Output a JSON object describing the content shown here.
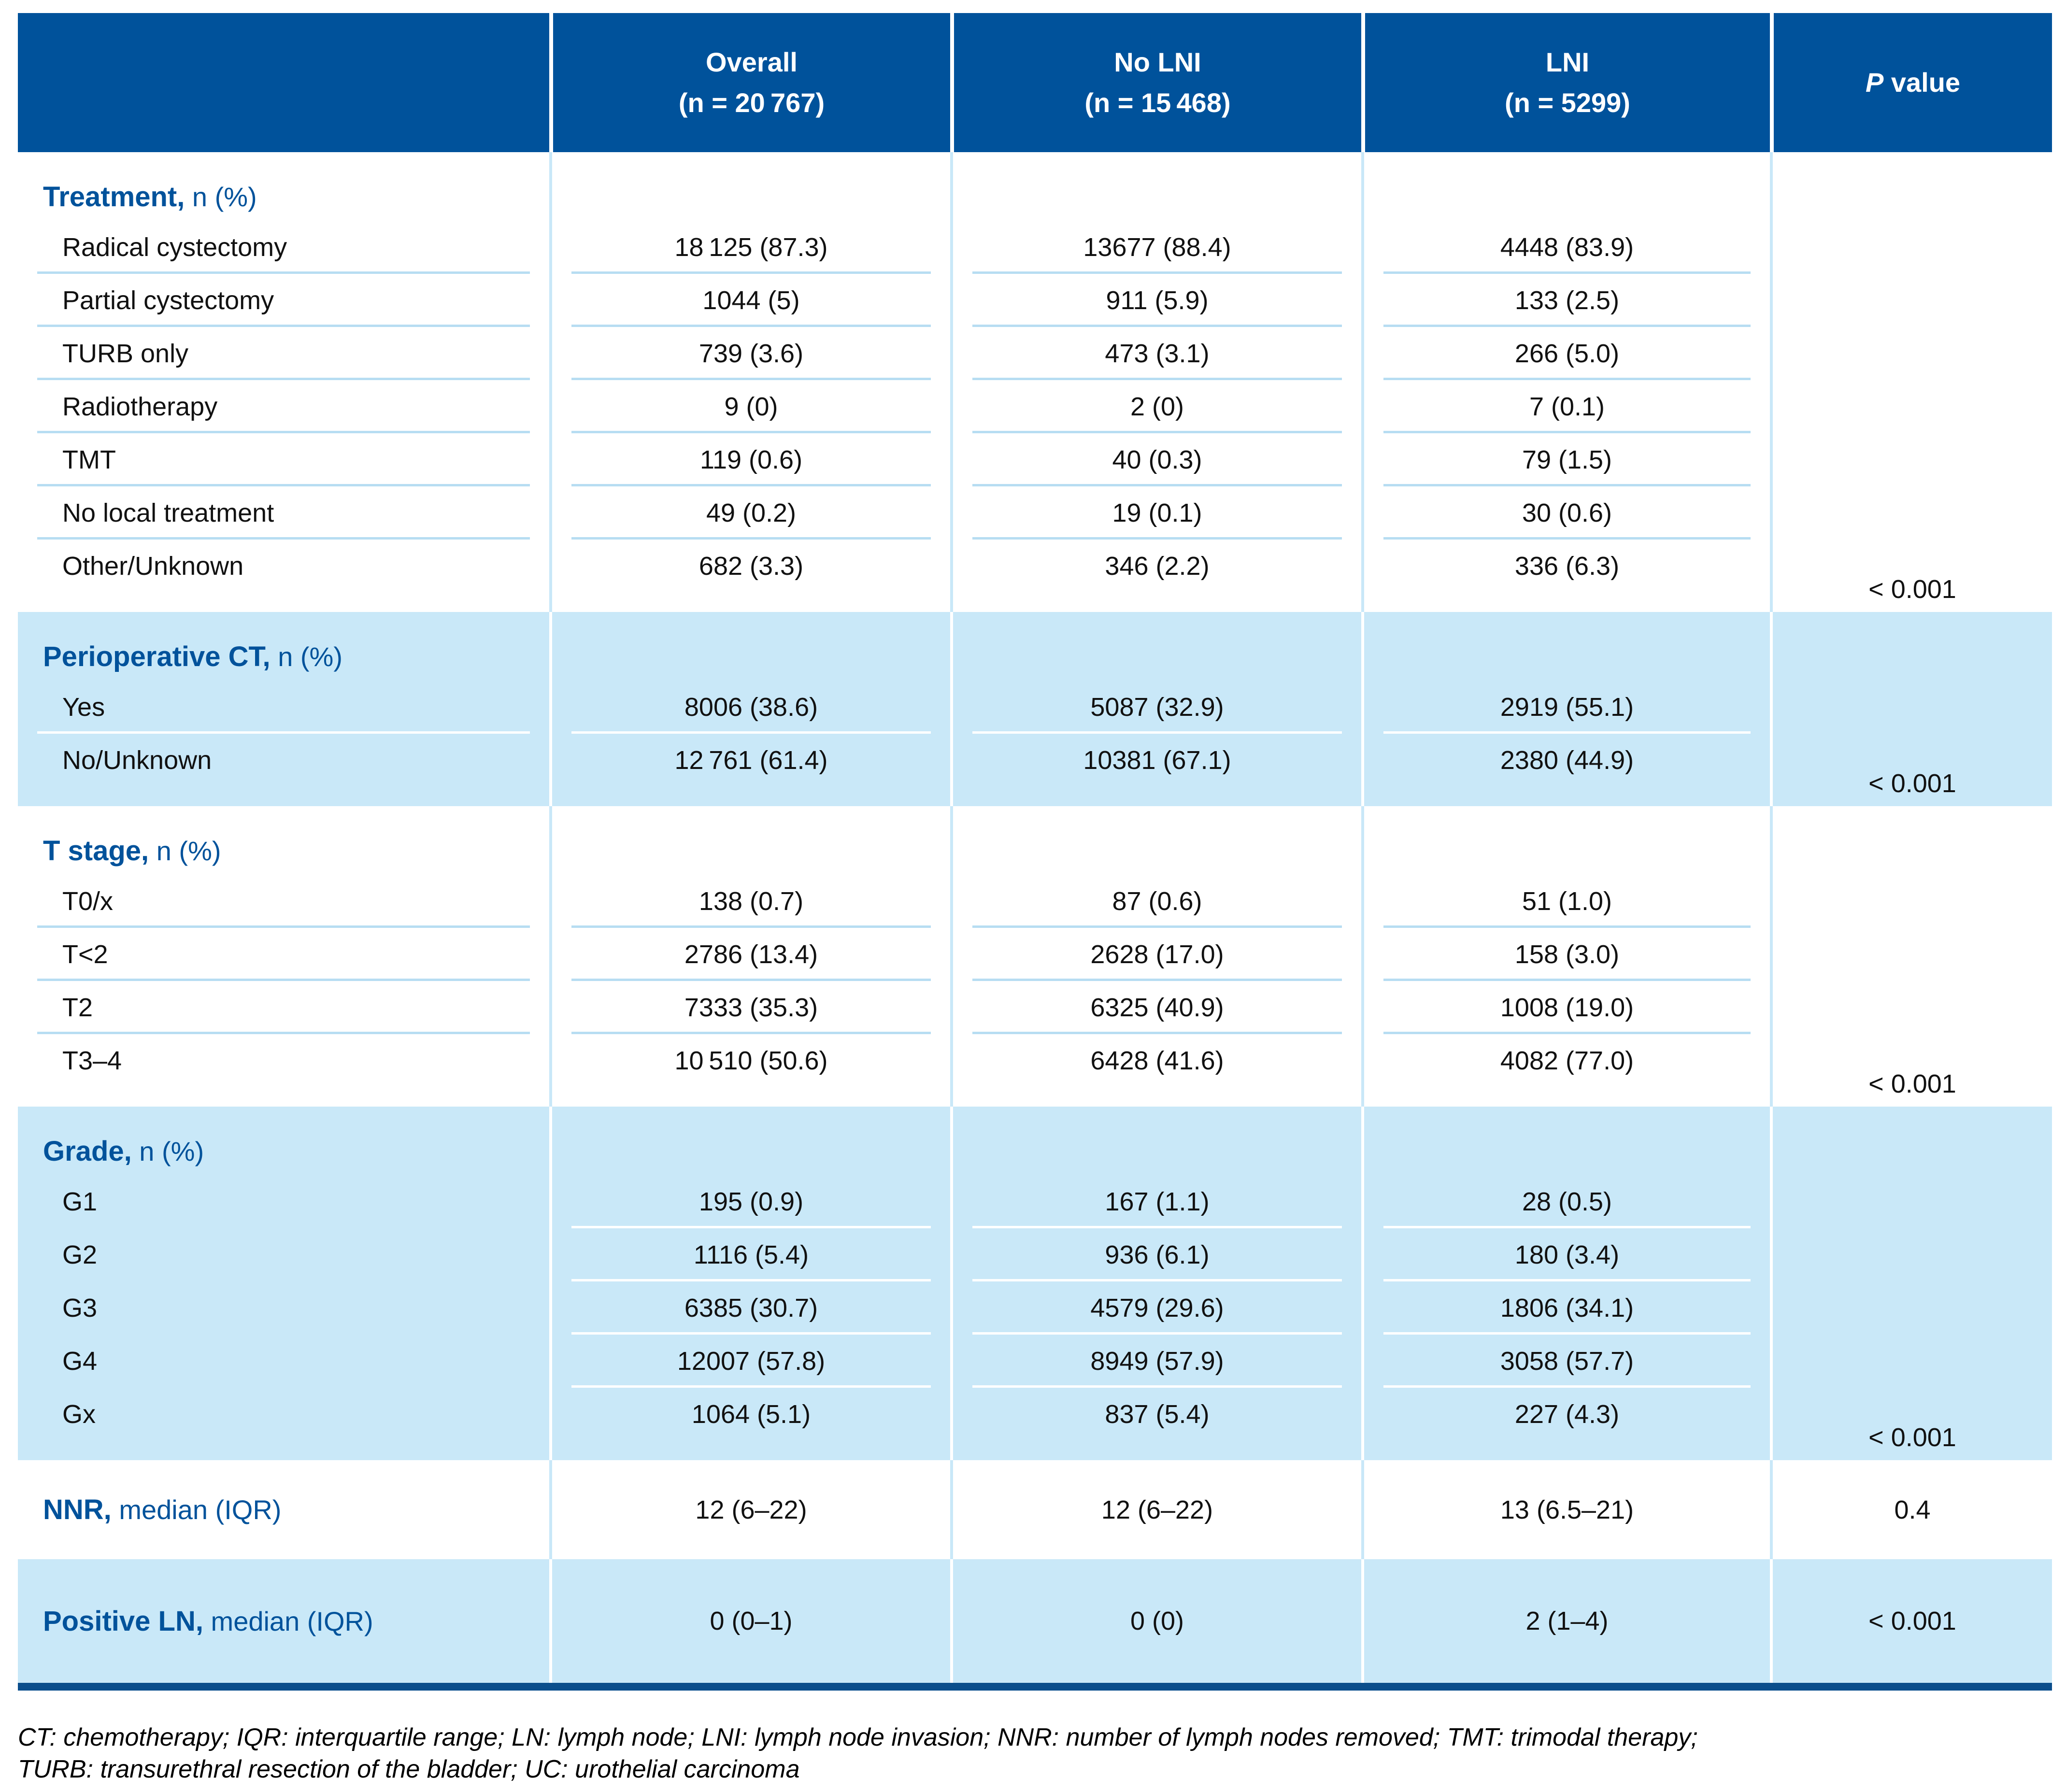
{
  "colors": {
    "header_bg": "#00529b",
    "band_bg": "#c9e8f8",
    "vsep_light": "#c9e8f8",
    "rowsep_light": "#b7ddf2",
    "rowsep_white": "#ffffff",
    "bottom_rule": "#0a4e8c",
    "accent_text": "#00529b",
    "header_text": "#ffffff",
    "body_text": "#111111"
  },
  "header": {
    "blank": "",
    "cols": [
      {
        "line1": "Overall",
        "line2": "(n = 20 767)"
      },
      {
        "line1": "No LNI",
        "line2": "(n = 15 468)"
      },
      {
        "line1": "LNI",
        "line2": "(n = 5299)"
      }
    ],
    "p": {
      "italic": "P",
      "rest": " value"
    }
  },
  "sections": [
    {
      "id": "treatment",
      "tone": "white",
      "title_bold": "Treatment,",
      "title_rest": " n (%)",
      "p_value": "< 0.001",
      "label_separators": true,
      "rows": [
        {
          "label": "Radical cystectomy",
          "overall": "18 125 (87.3)",
          "no_lni": "13677 (88.4)",
          "lni": "4448 (83.9)"
        },
        {
          "label": "Partial cystectomy",
          "overall": "1044 (5)",
          "no_lni": "911 (5.9)",
          "lni": "133 (2.5)"
        },
        {
          "label": "TURB only",
          "overall": "739 (3.6)",
          "no_lni": "473 (3.1)",
          "lni": "266 (5.0)"
        },
        {
          "label": "Radiotherapy",
          "overall": "9 (0)",
          "no_lni": "2 (0)",
          "lni": "7 (0.1)"
        },
        {
          "label": "TMT",
          "overall": "119 (0.6)",
          "no_lni": "40 (0.3)",
          "lni": "79 (1.5)"
        },
        {
          "label": "No local treatment",
          "overall": "49 (0.2)",
          "no_lni": "19 (0.1)",
          "lni": "30 (0.6)"
        },
        {
          "label": "Other/Unknown",
          "overall": "682 (3.3)",
          "no_lni": "346 (2.2)",
          "lni": "336 (6.3)"
        }
      ]
    },
    {
      "id": "perioperative-ct",
      "tone": "blue",
      "title_bold": "Perioperative CT,",
      "title_rest": " n (%)",
      "p_value": "< 0.001",
      "label_separators": true,
      "rows": [
        {
          "label": "Yes",
          "overall": "8006 (38.6)",
          "no_lni": "5087 (32.9)",
          "lni": "2919 (55.1)"
        },
        {
          "label": "No/Unknown",
          "overall": "12 761 (61.4)",
          "no_lni": "10381 (67.1)",
          "lni": "2380 (44.9)"
        }
      ]
    },
    {
      "id": "t-stage",
      "tone": "white",
      "title_bold": "T stage,",
      "title_rest": " n (%)",
      "p_value": "< 0.001",
      "label_separators": true,
      "rows": [
        {
          "label": "T0/x",
          "overall": "138 (0.7)",
          "no_lni": "87 (0.6)",
          "lni": "51 (1.0)"
        },
        {
          "label": "T<2",
          "overall": "2786 (13.4)",
          "no_lni": "2628 (17.0)",
          "lni": "158 (3.0)"
        },
        {
          "label": "T2",
          "overall": "7333 (35.3)",
          "no_lni": "6325 (40.9)",
          "lni": "1008 (19.0)"
        },
        {
          "label": "T3–4",
          "overall": "10 510 (50.6)",
          "no_lni": "6428 (41.6)",
          "lni": "4082 (77.0)"
        }
      ]
    },
    {
      "id": "grade",
      "tone": "blue",
      "title_bold": "Grade,",
      "title_rest": " n (%)",
      "p_value": "< 0.001",
      "label_separators": false,
      "rows": [
        {
          "label": "G1",
          "overall": "195 (0.9)",
          "no_lni": "167 (1.1)",
          "lni": "28 (0.5)"
        },
        {
          "label": "G2",
          "overall": "1116 (5.4)",
          "no_lni": "936 (6.1)",
          "lni": "180 (3.4)"
        },
        {
          "label": "G3",
          "overall": "6385 (30.7)",
          "no_lni": "4579 (29.6)",
          "lni": "1806 (34.1)"
        },
        {
          "label": "G4",
          "overall": "12007 (57.8)",
          "no_lni": "8949 (57.9)",
          "lni": "3058 (57.7)"
        },
        {
          "label": "Gx",
          "overall": "1064 (5.1)",
          "no_lni": "837 (5.4)",
          "lni": "227 (4.3)"
        }
      ]
    },
    {
      "id": "nnr",
      "tone": "white",
      "inline": true,
      "title_bold": "NNR,",
      "title_rest": " median (IQR)",
      "p_value": "0.4",
      "rows": [
        {
          "label": "",
          "overall": "12 (6–22)",
          "no_lni": "12 (6–22)",
          "lni": "13 (6.5–21)"
        }
      ]
    },
    {
      "id": "positive-ln",
      "tone": "blue",
      "inline": true,
      "title_bold": "Positive LN,",
      "title_rest": " median (IQR)",
      "p_value": "< 0.001",
      "rows": [
        {
          "label": "",
          "overall": "0 (0–1)",
          "no_lni": "0 (0)",
          "lni": "2 (1–4)"
        }
      ]
    }
  ],
  "footnote": {
    "line1": "CT: chemotherapy; IQR: interquartile range; LN: lymph node; LNI: lymph node invasion; NNR: number of lymph nodes removed; TMT: trimodal therapy;",
    "line2": "TURB: transurethral resection of the bladder; UC: urothelial carcinoma"
  }
}
